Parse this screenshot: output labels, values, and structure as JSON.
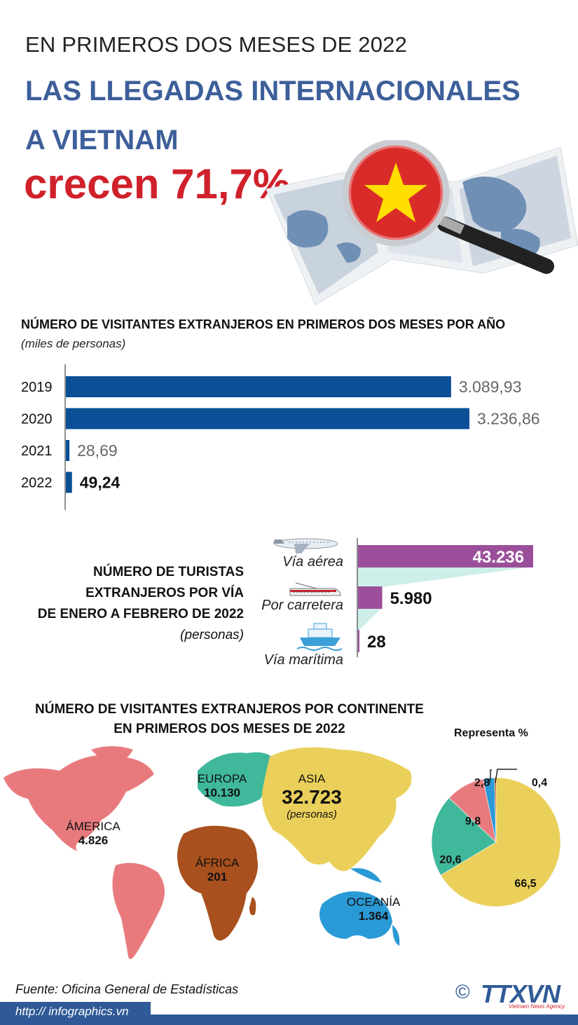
{
  "header": {
    "line1": "EN PRIMEROS DOS MESES DE 2022",
    "line2": "LAS LLEGADAS INTERNACIONALES",
    "line3": "A VIETNAM",
    "headline": "crecen 71,7%"
  },
  "yearly": {
    "title": "NÚMERO DE VISITANTES EXTRANJEROS EN PRIMEROS DOS MESES POR AÑO",
    "unit": "(miles de personas)",
    "chart_data": {
      "type": "bar",
      "orientation": "horizontal",
      "categories": [
        "2019",
        "2020",
        "2021",
        "2022"
      ],
      "values": [
        3089.93,
        3236.86,
        28.69,
        49.24
      ],
      "value_labels": [
        "3.089,93",
        "3.236,86",
        "28,69",
        "49,24"
      ],
      "color": "#0b4f96"
    }
  },
  "transport": {
    "title_lines": [
      "NÚMERO DE TURISTAS",
      "EXTRANJEROS POR VÍA",
      "DE ENERO A FEBRERO DE 2022"
    ],
    "unit": "(personas)",
    "chart_data": {
      "type": "bar",
      "orientation": "horizontal",
      "categories": [
        "Vía aérea",
        "Por carretera",
        "Vía marítima"
      ],
      "values": [
        43236,
        5980,
        28
      ],
      "value_labels": [
        "43.236",
        "5.980",
        "28"
      ],
      "color": "#9b4f9b",
      "shadow_color": "#cdeee9"
    },
    "icons": [
      "airplane-icon",
      "train-icon",
      "ship-icon"
    ]
  },
  "continents": {
    "title_lines": [
      "NÚMERO DE VISITANTES EXTRANJEROS POR CONTINENTE",
      "EN PRIMEROS DOS MESES DE 2022"
    ],
    "regions": [
      {
        "name": "ÁMERICA",
        "value": "4.826",
        "color": "#e87a7e"
      },
      {
        "name": "EUROPA",
        "value": "10.130",
        "color": "#3fb89b"
      },
      {
        "name": "ASIA",
        "value": "32.723",
        "note": "(personas)",
        "color": "#ead05a"
      },
      {
        "name": "ÁFRICA",
        "value": "201",
        "color": "#a8501e"
      },
      {
        "name": "OCEANÍA",
        "value": "1.364",
        "color": "#2a9ad6"
      }
    ],
    "pie_title": "Representa %",
    "chart_data": {
      "type": "pie",
      "labels": [
        "ASIA",
        "EUROPA",
        "ÁMERICA",
        "OCEANÍA",
        "ÁFRICA"
      ],
      "values": [
        66.5,
        20.6,
        9.8,
        2.8,
        0.4
      ],
      "value_labels": [
        "66,5",
        "20,6",
        "9,8",
        "2,8",
        "0,4"
      ],
      "colors": [
        "#ead05a",
        "#3fb89b",
        "#e87a7e",
        "#2a9ad6",
        "#a8501e"
      ]
    }
  },
  "footer": {
    "source": "Fuente: Oficina General de Estadísticas",
    "url": "http:// infographics.vn",
    "copyright": "©",
    "logo": "TTXVN",
    "logo_sub": "Vietnam News Agency"
  }
}
